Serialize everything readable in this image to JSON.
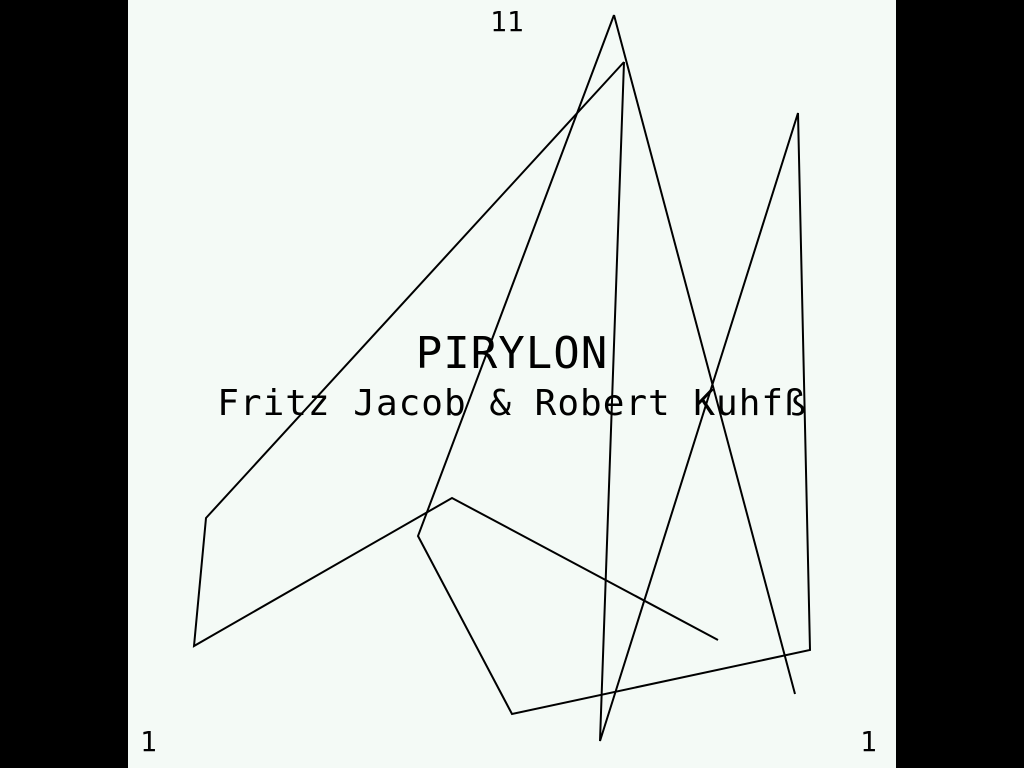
{
  "game": {
    "title": "PIRYLON",
    "credits": "Fritz Jacob & Robert Kuhfß",
    "scores": {
      "top": "11",
      "bottom_left": "1",
      "bottom_right": "1"
    }
  },
  "colors": {
    "background": "#000000",
    "playfield": "#f4faf6",
    "ink": "#000000"
  }
}
